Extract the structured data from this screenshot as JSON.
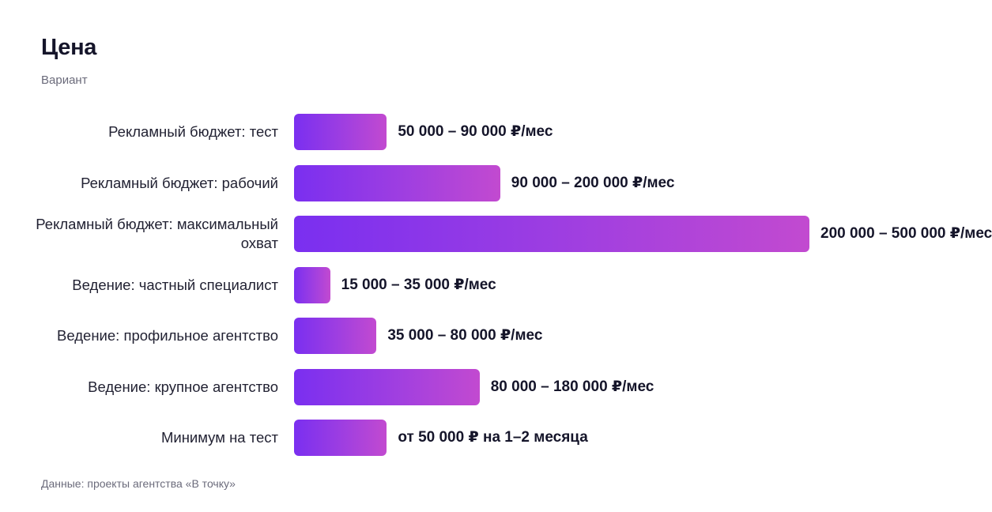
{
  "header": {
    "title": "Цена",
    "subtitle": "Вариант"
  },
  "footer": {
    "source": "Данные: проекты агентства «В точку»"
  },
  "chart_data": {
    "type": "bar",
    "orientation": "horizontal",
    "title": "Цена",
    "subtitle": "Вариант",
    "grid": false,
    "colors": [
      "#7a2ff0",
      "#c24ad0"
    ],
    "categories": [
      "Рекламный бюджет: тест",
      "Рекламный бюджет: рабочий",
      "Рекламный бюджет: максимальный охват",
      "Ведение: частный специалист",
      "Ведение: профильное агентство",
      "Ведение: крупное агентство",
      "Минимум на тест"
    ],
    "values": [
      90000,
      200000,
      500000,
      35000,
      80000,
      180000,
      90000
    ],
    "value_labels": [
      "50 000 – 90 000 ₽/мес",
      "90 000 – 200 000 ₽/мес",
      "200 000 – 500 000 ₽/мес",
      "15 000 – 35 000 ₽/мес",
      "35 000 – 80 000 ₽/мес",
      "80 000 – 180 000 ₽/мес",
      "от 50 000 ₽ на 1–2 месяца"
    ],
    "xlim": [
      0,
      500000
    ]
  }
}
